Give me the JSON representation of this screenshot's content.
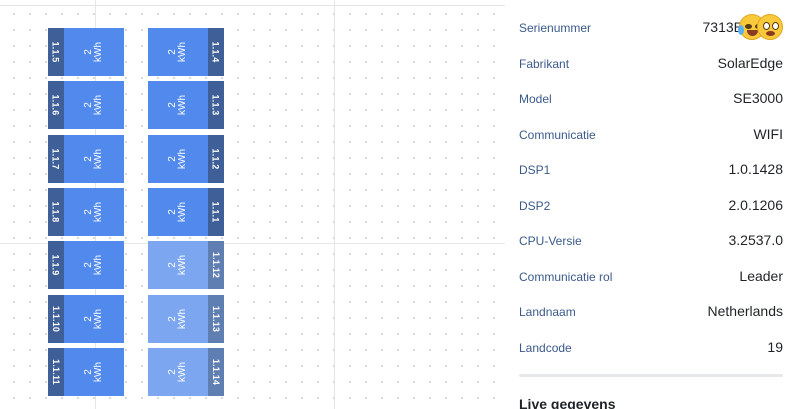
{
  "canvas": {
    "panels": [
      {
        "id": "1.1.5",
        "power": "2\nkWh",
        "column": "left",
        "light": false
      },
      {
        "id": "1.1.6",
        "power": "2\nkWh",
        "column": "left",
        "light": false
      },
      {
        "id": "1.1.7",
        "power": "2\nkWh",
        "column": "left",
        "light": false
      },
      {
        "id": "1.1.8",
        "power": "2\nkWh",
        "column": "left",
        "light": false
      },
      {
        "id": "1.1.9",
        "power": "2\nkWh",
        "column": "left",
        "light": false
      },
      {
        "id": "1.1.10",
        "power": "2\nkWh",
        "column": "left",
        "light": false
      },
      {
        "id": "1.1.11",
        "power": "2\nkWh",
        "column": "left",
        "light": false
      },
      {
        "id": "1.1.4",
        "power": "2\nkWh",
        "column": "right",
        "light": false
      },
      {
        "id": "1.1.3",
        "power": "2\nkWh",
        "column": "right",
        "light": false
      },
      {
        "id": "1.1.2",
        "power": "2\nkWh",
        "column": "right",
        "light": false
      },
      {
        "id": "1.1.1",
        "power": "2\nkWh",
        "column": "right",
        "light": false
      },
      {
        "id": "1.1.12",
        "power": "2\nkWh",
        "column": "right",
        "light": true
      },
      {
        "id": "1.1.13",
        "power": "2\nkWh",
        "column": "right",
        "light": true
      },
      {
        "id": "1.1.14",
        "power": "2\nkWh",
        "column": "right",
        "light": true
      }
    ],
    "colors": {
      "panel": "#5289ec",
      "panel_light": "#7ca6f0",
      "tag": "#3e5f97"
    }
  },
  "properties": {
    "rows": [
      {
        "label": "Serienummer",
        "value": "7313B"
      },
      {
        "label": "Fabrikant",
        "value": "SolarEdge"
      },
      {
        "label": "Model",
        "value": "SE3000"
      },
      {
        "label": "Communicatie",
        "value": "WIFI"
      },
      {
        "label": "DSP1",
        "value": "1.0.1428"
      },
      {
        "label": "DSP2",
        "value": "2.0.1206"
      },
      {
        "label": "CPU-Versie",
        "value": "3.2537.0"
      },
      {
        "label": "Communicatie rol",
        "value": "Leader"
      },
      {
        "label": "Landnaam",
        "value": "Netherlands"
      },
      {
        "label": "Landcode",
        "value": "19"
      }
    ],
    "serial_suffix_icons": [
      "laughing-tears-emoji-icon",
      "grinning-face-emoji-icon"
    ],
    "live_heading": "Live gegevens"
  }
}
